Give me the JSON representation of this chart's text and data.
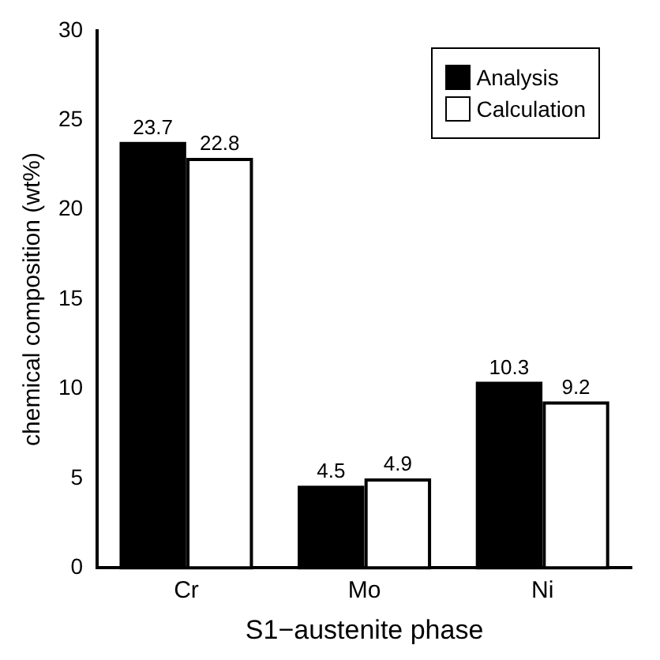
{
  "chart_data": {
    "type": "bar",
    "xlabel": "S1−austenite phase",
    "ylabel": "chemical composition (wt%)",
    "categories": [
      "Cr",
      "Mo",
      "Ni"
    ],
    "series": [
      {
        "name": "Analysis",
        "color": "#000000",
        "values": [
          23.7,
          4.5,
          10.3
        ]
      },
      {
        "name": "Calculation",
        "color": "#ffffff",
        "values": [
          22.8,
          4.9,
          9.2
        ]
      }
    ],
    "ylim": [
      0,
      30
    ],
    "yticks": [
      0,
      5,
      10,
      15,
      20,
      25,
      30
    ],
    "grid": false,
    "legend": "top right",
    "data_labels": true
  }
}
